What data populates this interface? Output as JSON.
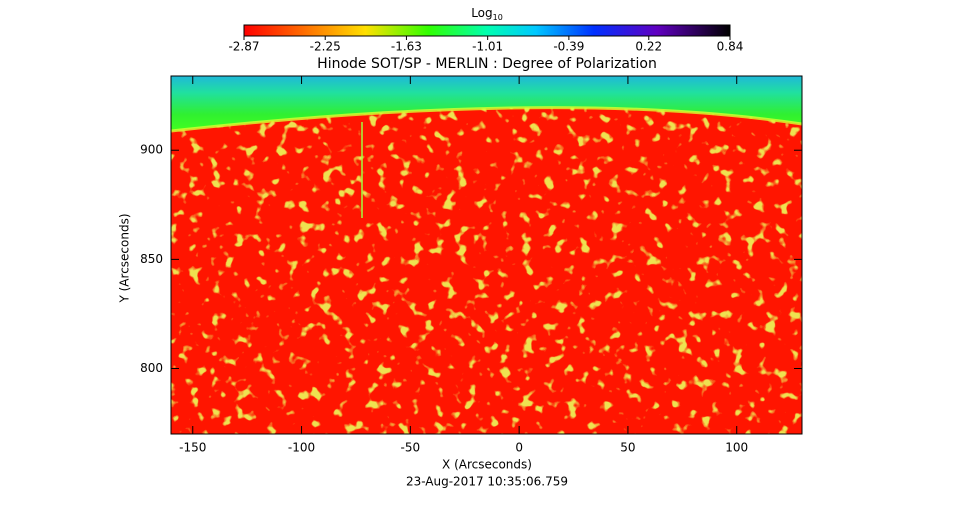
{
  "chart_data": {
    "type": "image",
    "title": "Hinode SOT/SP - MERLIN : Degree of Polarization",
    "x_label": "X (Arcseconds)",
    "y_label": "Y (Arcseconds)",
    "footer": "23-Aug-2017 10:35:06.759",
    "xlim": [
      -160,
      130
    ],
    "ylim": [
      770,
      934
    ],
    "xticks": [
      -150,
      -100,
      -50,
      0,
      50,
      100
    ],
    "yticks": [
      800,
      850,
      900
    ],
    "colorbar_label": "Log",
    "colorbar_label_sub": "10",
    "colorbar_lim": [
      -2.87,
      0.84
    ],
    "colorbar_ticks": [
      -2.87,
      -2.25,
      -1.63,
      -1.01,
      -0.39,
      0.22,
      0.84
    ]
  }
}
